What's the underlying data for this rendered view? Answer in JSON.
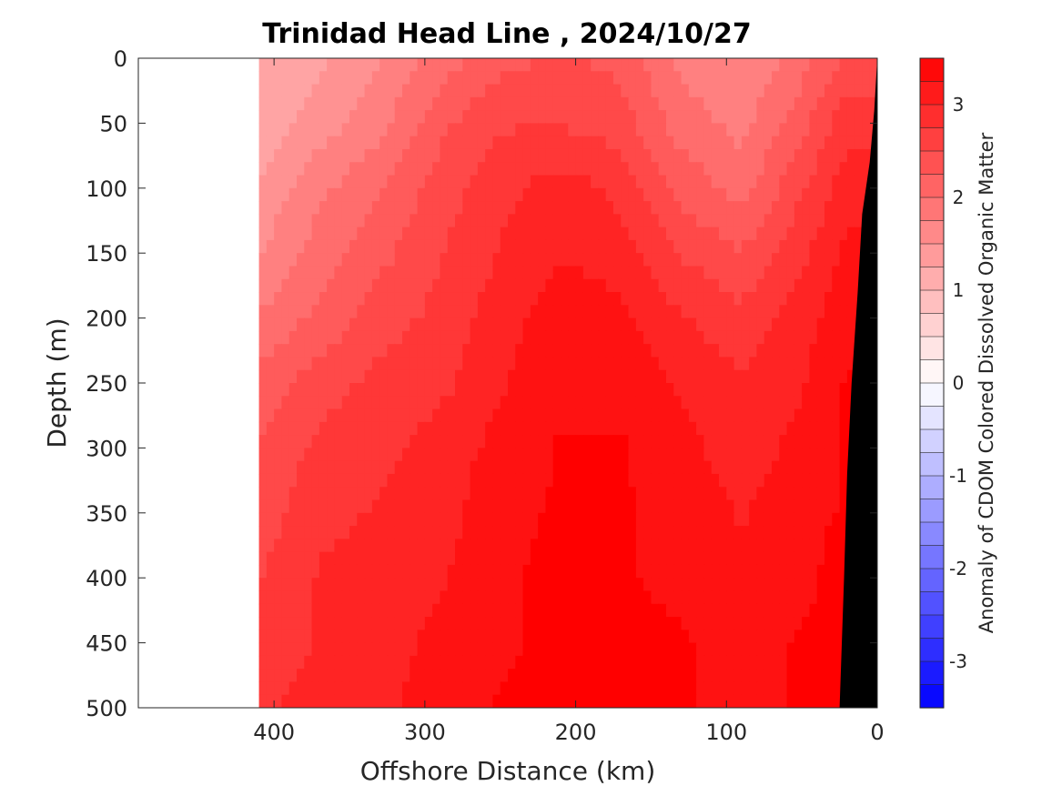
{
  "chart_data": {
    "type": "heatmap",
    "title": "Trinidad Head Line , 2024/10/27",
    "xlabel": "Offshore Distance (km)",
    "ylabel": "Depth (m)",
    "xlim": [
      490,
      0
    ],
    "ylim": [
      0,
      500
    ],
    "x_ticks": [
      "400",
      "300",
      "200",
      "100",
      "0"
    ],
    "y_ticks": [
      "0",
      "50",
      "100",
      "150",
      "200",
      "250",
      "300",
      "350",
      "400",
      "450",
      "500"
    ],
    "y_reversed": true,
    "x_reversed": true,
    "colorbar": {
      "label": "Anomaly of CDOM Colored Dissolved Organic Matter",
      "range": [
        -3.5,
        3.5
      ],
      "tick_labels": [
        "-3",
        "-2",
        "-1",
        "0",
        "1",
        "2",
        "3"
      ],
      "tick_values": [
        -3,
        -2,
        -1,
        0,
        1,
        2,
        3
      ],
      "level_step": 0.25,
      "colormap": "blue-white-red",
      "low_color": "#0000ff",
      "mid_color": "#ffffff",
      "high_color": "#ff0000"
    },
    "data_extent_km": [
      0,
      410
    ],
    "bathymetry_color": "#000000",
    "bathymetry": {
      "distance_km": [
        0,
        2,
        5,
        10,
        13,
        17,
        20,
        22,
        25
      ],
      "depth_m": [
        0,
        40,
        80,
        120,
        180,
        250,
        320,
        400,
        500
      ]
    },
    "field": {
      "distance_km": [
        410,
        370,
        330,
        290,
        250,
        210,
        170,
        130,
        90,
        50,
        20
      ],
      "depth_m": [
        0,
        50,
        100,
        150,
        200,
        250,
        300,
        350,
        400,
        450,
        500
      ],
      "values": [
        [
          1.2,
          1.3,
          1.6,
          2.0,
          2.3,
          2.4,
          2.3,
          1.8,
          1.6,
          2.0,
          2.4
        ],
        [
          1.2,
          1.5,
          1.8,
          2.3,
          2.6,
          2.6,
          2.5,
          2.0,
          1.8,
          2.3,
          2.8
        ],
        [
          1.4,
          1.8,
          2.1,
          2.5,
          2.8,
          3.0,
          2.8,
          2.3,
          2.0,
          2.6,
          3.0
        ],
        [
          1.6,
          2.0,
          2.3,
          2.6,
          2.9,
          3.1,
          3.0,
          2.6,
          2.4,
          2.8,
          3.2
        ],
        [
          1.9,
          2.2,
          2.5,
          2.7,
          3.0,
          3.3,
          3.2,
          2.9,
          2.7,
          3.0,
          3.3
        ],
        [
          2.2,
          2.5,
          2.7,
          2.8,
          3.1,
          3.3,
          3.3,
          3.1,
          2.9,
          3.1,
          3.4
        ],
        [
          2.4,
          2.7,
          2.8,
          3.0,
          3.2,
          3.4,
          3.4,
          3.2,
          3.0,
          3.2,
          3.4
        ],
        [
          2.5,
          2.8,
          2.9,
          3.0,
          3.3,
          3.4,
          3.4,
          3.3,
          3.1,
          3.3,
          3.4
        ],
        [
          2.6,
          2.9,
          3.0,
          3.1,
          3.3,
          3.5,
          3.4,
          3.3,
          3.2,
          3.3,
          3.5
        ],
        [
          2.7,
          2.9,
          3.0,
          3.2,
          3.3,
          3.5,
          3.5,
          3.4,
          3.3,
          3.4,
          3.5
        ],
        [
          2.8,
          3.0,
          3.1,
          3.2,
          3.4,
          3.5,
          3.5,
          3.4,
          3.3,
          3.4,
          3.5
        ]
      ]
    }
  },
  "colors": {
    "axis": "#262626",
    "background": "#ffffff"
  }
}
